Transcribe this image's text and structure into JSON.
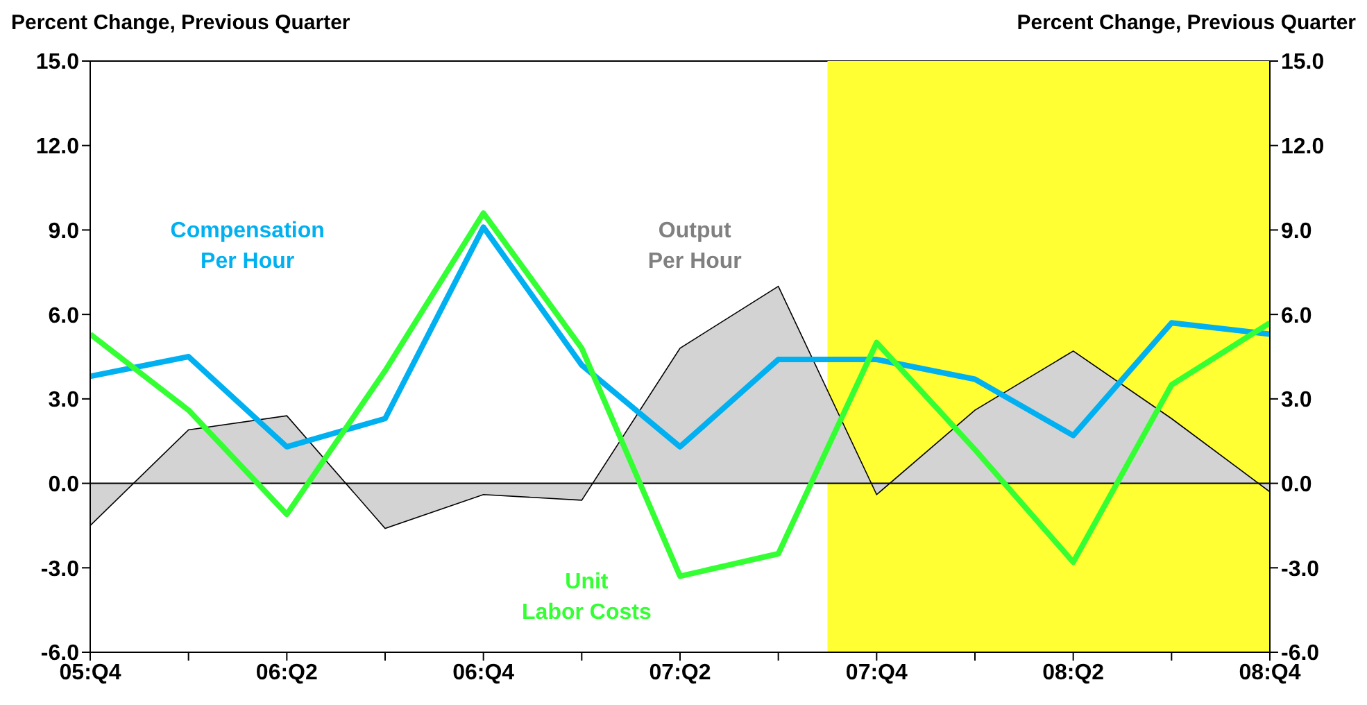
{
  "chart_data": {
    "type": "line",
    "ylabel": "Percent Change, Previous Quarter",
    "y2label": "Percent Change, Previous Quarter",
    "categories": [
      "05:Q4",
      null,
      "06:Q2",
      null,
      "06:Q4",
      null,
      "07:Q2",
      null,
      "07:Q4",
      null,
      "08:Q2",
      null,
      "08:Q4"
    ],
    "series": [
      {
        "name": "Output\nPer Hour",
        "type": "area",
        "color": "#d3d3d3",
        "values": [
          -1.5,
          1.9,
          2.4,
          -1.6,
          -0.4,
          -0.6,
          4.8,
          7.0,
          -0.4,
          2.6,
          4.7,
          2.3,
          -0.3
        ]
      },
      {
        "name": "Compensation\nPer Hour",
        "color": "#00b0f0",
        "values": [
          3.8,
          4.5,
          1.3,
          2.3,
          9.1,
          4.2,
          1.3,
          4.4,
          4.4,
          3.7,
          1.7,
          5.7,
          5.3
        ]
      },
      {
        "name": "Unit\nLabor Costs",
        "color": "#33ff33",
        "values": [
          5.3,
          2.6,
          -1.1,
          4.0,
          9.6,
          4.8,
          -3.3,
          -2.5,
          5.0,
          1.2,
          -2.8,
          3.5,
          5.7
        ]
      }
    ],
    "ylim": [
      -6,
      15
    ],
    "yticks": [
      {
        "value": -6,
        "label": "-6.0"
      },
      {
        "value": -3,
        "label": "-3.0"
      },
      {
        "value": 0,
        "label": "0.0"
      },
      {
        "value": 3,
        "label": "3.0"
      },
      {
        "value": 6,
        "label": "6.0"
      },
      {
        "value": 9,
        "label": "9.0"
      },
      {
        "value": 12,
        "label": "12.0"
      },
      {
        "value": 15,
        "label": "15.0"
      }
    ],
    "y2lim": [
      -6,
      15
    ],
    "y2ticks": [
      {
        "value": -6,
        "label": "-6.0"
      },
      {
        "value": -3,
        "label": "-3.0"
      },
      {
        "value": 0,
        "label": "0.0"
      },
      {
        "value": 3,
        "label": "3.0"
      },
      {
        "value": 6,
        "label": "6.0"
      },
      {
        "value": 9,
        "label": "9.0"
      },
      {
        "value": 12,
        "label": "12.0"
      },
      {
        "value": 15,
        "label": "15.0"
      }
    ],
    "ref_lines": [
      {
        "axis": "y",
        "value": 0,
        "color": "#000000"
      }
    ],
    "legend": false,
    "marker": "none",
    "line_style": "solid"
  }
}
